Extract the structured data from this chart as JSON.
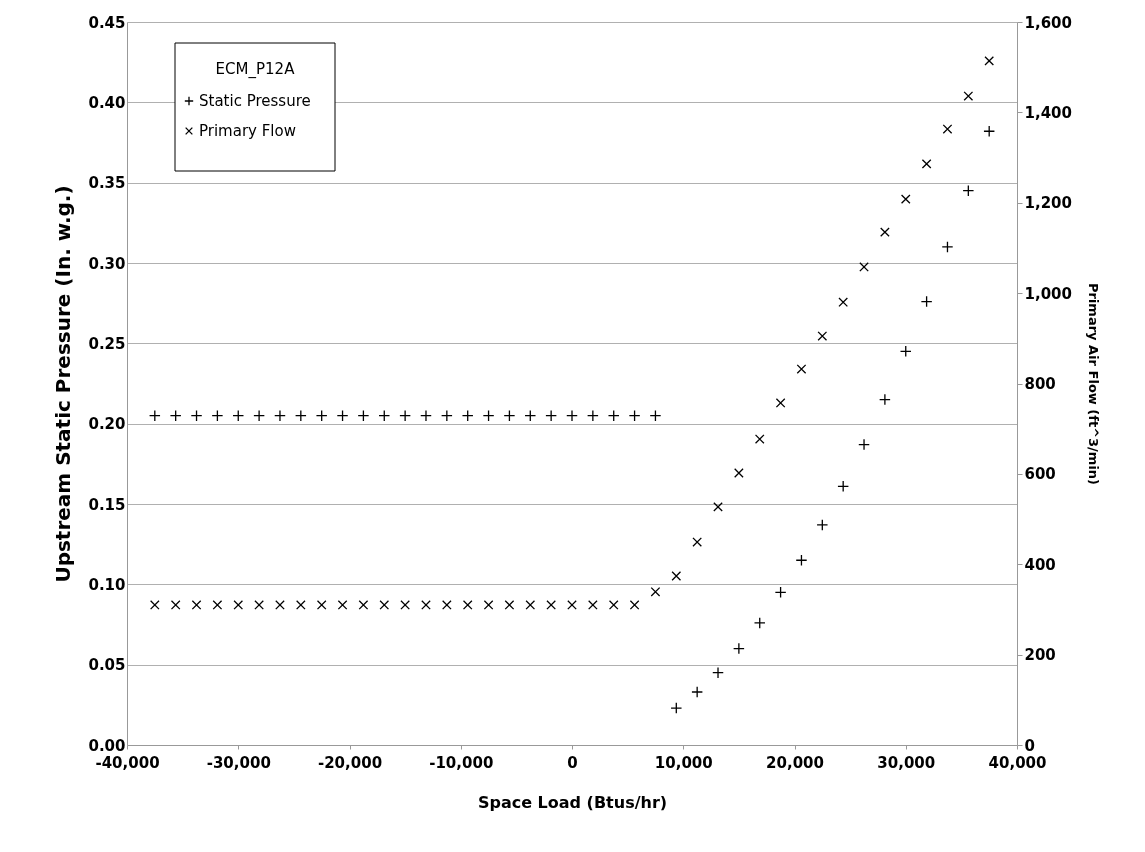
{
  "chart_data": {
    "type": "scatter",
    "xlabel": "Space Load (Btus/hr)",
    "ylabel": "Upstream Static Pressure (In. w.g.)",
    "y2label": "Primary Air Flow (ft^3/min)",
    "legend_title": "ECM_P12A",
    "legend": "top left",
    "grid": "y",
    "x": [
      -37500,
      -35625,
      -33750,
      -31875,
      -30000,
      -28125,
      -26250,
      -24375,
      -22500,
      -20625,
      -18750,
      -16875,
      -15000,
      -13125,
      -11250,
      -9375,
      -7500,
      -5625,
      -3750,
      -1875,
      0,
      1875,
      3750,
      5625,
      7500,
      9375,
      11250,
      13125,
      15000,
      16875,
      18750,
      20625,
      22500,
      24375,
      26250,
      28125,
      30000,
      31875,
      33750,
      35625,
      37500
    ],
    "xlim": [
      -40000,
      40000
    ],
    "xticks": [
      {
        "value": -40000,
        "label": "-40,000"
      },
      {
        "value": -30000,
        "label": "-30,000"
      },
      {
        "value": -20000,
        "label": "-20,000"
      },
      {
        "value": -10000,
        "label": "-10,000"
      },
      0,
      {
        "value": 10000,
        "label": "10,000"
      },
      {
        "value": 20000,
        "label": "20,000"
      },
      {
        "value": 30000,
        "label": "30,000"
      },
      {
        "value": 40000,
        "label": "40,000"
      }
    ],
    "ylim": [
      0,
      0.45
    ],
    "yticks": [
      {
        "value": 0,
        "label": "0.00"
      },
      0.05,
      {
        "value": 0.1,
        "label": "0.10"
      },
      0.15,
      {
        "value": 0.2,
        "label": "0.20"
      },
      0.25,
      {
        "value": 0.3,
        "label": "0.30"
      },
      0.35,
      {
        "value": 0.4,
        "label": "0.40"
      },
      0.45
    ],
    "y2lim": [
      0,
      1600
    ],
    "y2ticks": [
      0,
      200,
      400,
      600,
      800,
      {
        "value": 1000,
        "label": "1,000"
      },
      {
        "value": 1200,
        "label": "1,200"
      },
      {
        "value": 1400,
        "label": "1,400"
      },
      {
        "value": 1600,
        "label": "1,600"
      }
    ],
    "series": [
      {
        "name": "Static Pressure",
        "color": "#000000",
        "marker": "cross",
        "values": [
          0.205,
          0.205,
          0.205,
          0.205,
          0.205,
          0.205,
          0.205,
          0.205,
          0.205,
          0.205,
          0.205,
          0.205,
          0.205,
          0.205,
          0.205,
          0.205,
          0.205,
          0.205,
          0.205,
          0.205,
          0.205,
          0.205,
          0.205,
          0.205,
          0.205,
          0.023,
          0.033,
          0.045,
          0.06,
          0.076,
          0.095,
          0.115,
          0.137,
          0.161,
          0.187,
          0.215,
          0.245,
          0.276,
          0.31,
          0.345,
          0.382
        ]
      },
      {
        "name": "Primary Flow",
        "color": "#000000",
        "marker": "x",
        "axis": "y2",
        "values": [
          310,
          310,
          310,
          310,
          310,
          310,
          310,
          310,
          310,
          310,
          310,
          310,
          310,
          310,
          310,
          310,
          310,
          310,
          310,
          310,
          310,
          310,
          310,
          310,
          339,
          374,
          449,
          527,
          602,
          677,
          757,
          832,
          905,
          980,
          1058,
          1135,
          1208,
          1286,
          1363,
          1436,
          1514
        ]
      }
    ]
  }
}
